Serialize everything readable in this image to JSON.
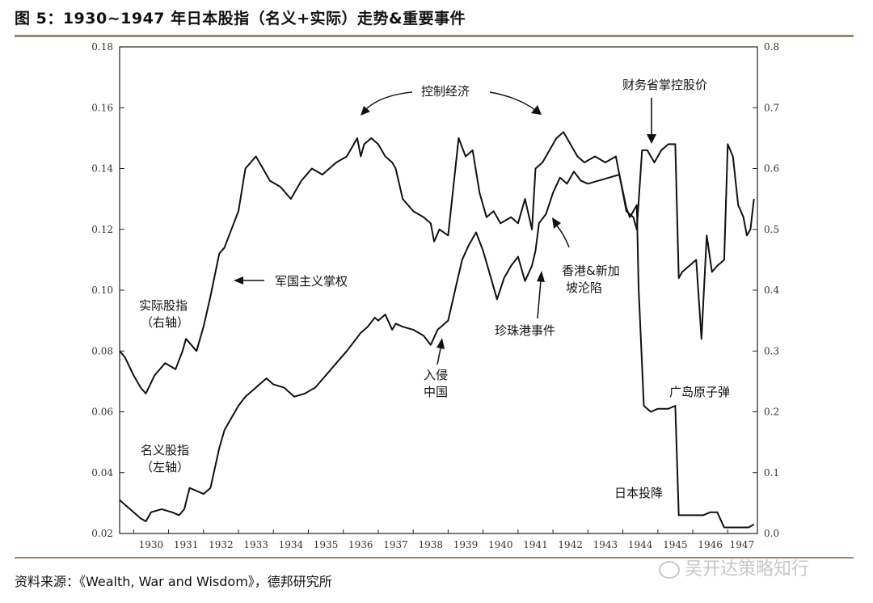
{
  "header": {
    "title": "图 5：1930~1947 年日本股指（名义+实际）走势&重要事件"
  },
  "footer": {
    "source": "资料来源：《Wealth, War and Wisdom》，德邦研究所",
    "watermark": "吴开达策略知行"
  },
  "chart_data": {
    "type": "line",
    "title": "图 5：1930~1947 年日本股指（名义+实际）走势&重要事件",
    "x_ticks": [
      "1930",
      "1931",
      "1932",
      "1933",
      "1934",
      "1935",
      "1936",
      "1937",
      "1938",
      "1939",
      "1940",
      "1941",
      "1942",
      "1943",
      "1944",
      "1945",
      "1946",
      "1947"
    ],
    "xlim": [
      1929.6,
      1947.85
    ],
    "y_left": {
      "ylim": [
        0.02,
        0.18
      ],
      "ticks": [
        "0.02",
        "0.04",
        "0.06",
        "0.08",
        "0.10",
        "0.12",
        "0.14",
        "0.16",
        "0.18"
      ]
    },
    "y_right": {
      "ylim": [
        0.0,
        0.8
      ],
      "ticks": [
        "0.0",
        "0.1",
        "0.2",
        "0.3",
        "0.4",
        "0.5",
        "0.6",
        "0.7",
        "0.8"
      ]
    },
    "series": [
      {
        "name": "实际股指（右轴）",
        "axis": "right",
        "x": [
          1929.6,
          1929.75,
          1930.0,
          1930.2,
          1930.35,
          1930.6,
          1930.9,
          1931.2,
          1931.4,
          1931.5,
          1931.65,
          1931.8,
          1932.0,
          1932.2,
          1932.45,
          1932.6,
          1932.8,
          1933.0,
          1933.2,
          1933.5,
          1933.7,
          1933.9,
          1934.2,
          1934.5,
          1934.8,
          1935.1,
          1935.4,
          1935.8,
          1936.1,
          1936.3,
          1936.4,
          1936.5,
          1936.6,
          1936.8,
          1937.0,
          1937.2,
          1937.4,
          1937.5,
          1937.7,
          1938.0,
          1938.3,
          1938.5,
          1938.6,
          1938.75,
          1939.0,
          1939.3,
          1939.5,
          1939.7,
          1939.9,
          1940.1,
          1940.3,
          1940.5,
          1940.8,
          1941.0,
          1941.2,
          1941.4,
          1941.5,
          1941.7,
          1941.9,
          1942.1,
          1942.3,
          1942.5,
          1942.7,
          1942.9,
          1943.2,
          1943.5,
          1943.8,
          1944.1,
          1944.3,
          1944.4,
          1944.55,
          1944.7,
          1944.9,
          1945.1,
          1945.3,
          1945.5,
          1945.6,
          1945.7,
          1945.9,
          1946.1,
          1946.25,
          1946.4,
          1946.55,
          1946.7,
          1946.9,
          1947.0,
          1947.15,
          1947.3,
          1947.45,
          1947.55,
          1947.65,
          1947.75
        ],
        "values": [
          0.3,
          0.29,
          0.26,
          0.24,
          0.23,
          0.26,
          0.28,
          0.27,
          0.3,
          0.32,
          0.31,
          0.3,
          0.34,
          0.39,
          0.46,
          0.47,
          0.5,
          0.53,
          0.6,
          0.62,
          0.6,
          0.58,
          0.57,
          0.55,
          0.58,
          0.6,
          0.59,
          0.61,
          0.62,
          0.64,
          0.65,
          0.62,
          0.64,
          0.65,
          0.64,
          0.62,
          0.61,
          0.6,
          0.55,
          0.53,
          0.52,
          0.51,
          0.48,
          0.5,
          0.49,
          0.65,
          0.62,
          0.63,
          0.56,
          0.52,
          0.53,
          0.51,
          0.52,
          0.51,
          0.55,
          0.5,
          0.6,
          0.61,
          0.63,
          0.65,
          0.66,
          0.64,
          0.62,
          0.61,
          0.62,
          0.61,
          0.62,
          0.53,
          0.52,
          0.5,
          0.63,
          0.63,
          0.61,
          0.63,
          0.64,
          0.64,
          0.42,
          0.43,
          0.44,
          0.45,
          0.32,
          0.49,
          0.43,
          0.44,
          0.45,
          0.64,
          0.62,
          0.54,
          0.52,
          0.49,
          0.5,
          0.55
        ]
      },
      {
        "name": "名义股指（左轴）",
        "axis": "left",
        "x": [
          1929.6,
          1929.8,
          1930.0,
          1930.2,
          1930.35,
          1930.5,
          1930.8,
          1931.1,
          1931.3,
          1931.45,
          1931.6,
          1931.8,
          1932.0,
          1932.2,
          1932.45,
          1932.6,
          1932.8,
          1933.0,
          1933.2,
          1933.4,
          1933.6,
          1933.8,
          1934.0,
          1934.3,
          1934.6,
          1934.9,
          1935.2,
          1935.5,
          1935.8,
          1936.1,
          1936.3,
          1936.5,
          1936.7,
          1936.9,
          1937.0,
          1937.2,
          1937.4,
          1937.5,
          1937.7,
          1938.0,
          1938.3,
          1938.5,
          1938.7,
          1939.0,
          1939.2,
          1939.4,
          1939.6,
          1939.8,
          1940.0,
          1940.2,
          1940.4,
          1940.6,
          1940.8,
          1941.0,
          1941.2,
          1941.4,
          1941.5,
          1941.6,
          1941.8,
          1942.0,
          1942.2,
          1942.4,
          1942.6,
          1942.8,
          1943.0,
          1943.3,
          1943.6,
          1943.9,
          1944.1,
          1944.2,
          1944.4,
          1944.45,
          1944.6,
          1944.8,
          1945.0,
          1945.3,
          1945.5,
          1945.6,
          1945.8,
          1946.0,
          1946.3,
          1946.5,
          1946.7,
          1946.9,
          1947.2,
          1947.4,
          1947.6,
          1947.75
        ],
        "values": [
          0.031,
          0.029,
          0.027,
          0.025,
          0.024,
          0.027,
          0.028,
          0.027,
          0.026,
          0.028,
          0.035,
          0.034,
          0.033,
          0.035,
          0.048,
          0.054,
          0.058,
          0.062,
          0.065,
          0.067,
          0.069,
          0.071,
          0.069,
          0.068,
          0.065,
          0.066,
          0.068,
          0.072,
          0.076,
          0.08,
          0.083,
          0.086,
          0.088,
          0.091,
          0.09,
          0.092,
          0.087,
          0.089,
          0.088,
          0.087,
          0.085,
          0.082,
          0.087,
          0.09,
          0.1,
          0.11,
          0.115,
          0.119,
          0.113,
          0.105,
          0.097,
          0.104,
          0.108,
          0.111,
          0.103,
          0.108,
          0.113,
          0.122,
          0.125,
          0.132,
          0.137,
          0.135,
          0.139,
          0.136,
          0.135,
          0.136,
          0.137,
          0.138,
          0.127,
          0.124,
          0.128,
          0.101,
          0.062,
          0.06,
          0.061,
          0.061,
          0.062,
          0.026,
          0.026,
          0.026,
          0.026,
          0.027,
          0.027,
          0.022,
          0.022,
          0.022,
          0.022,
          0.023
        ]
      }
    ],
    "annotations": [
      {
        "id": "control",
        "text": "控制经济"
      },
      {
        "id": "militarist",
        "text": "军国主义掌权"
      },
      {
        "id": "mof",
        "text": "财务省掌控股价"
      },
      {
        "id": "invade",
        "lines": [
          "入侵",
          "中国"
        ]
      },
      {
        "id": "pearl",
        "text": "珍珠港事件"
      },
      {
        "id": "hk",
        "lines": [
          "香港&新加",
          "坡沦陷"
        ]
      },
      {
        "id": "hiroshima",
        "text": "广岛原子弹"
      },
      {
        "id": "surrender",
        "text": "日本投降"
      },
      {
        "id": "real_label",
        "lines": [
          "实际股指",
          "（右轴）"
        ]
      },
      {
        "id": "nominal_label",
        "lines": [
          "名义股指",
          "（左轴）"
        ]
      }
    ]
  }
}
